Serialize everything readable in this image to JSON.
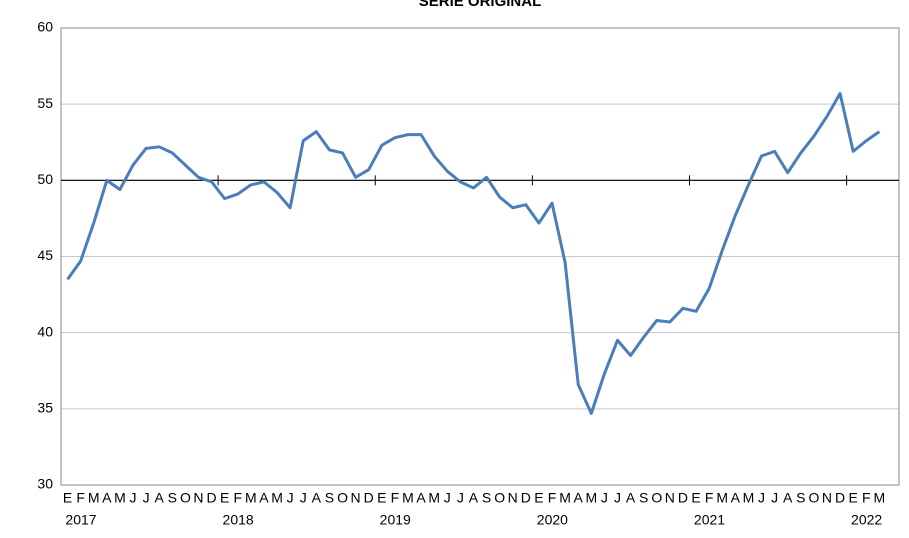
{
  "chart_data": {
    "type": "line",
    "title": "SERIE ORIGINAL",
    "categories": [
      "E",
      "F",
      "M",
      "A",
      "M",
      "J",
      "J",
      "A",
      "S",
      "O",
      "N",
      "D",
      "E",
      "F",
      "M",
      "A",
      "M",
      "J",
      "J",
      "A",
      "S",
      "O",
      "N",
      "D",
      "E",
      "F",
      "M",
      "A",
      "M",
      "J",
      "J",
      "A",
      "S",
      "O",
      "N",
      "D",
      "E",
      "F",
      "M",
      "A",
      "M",
      "J",
      "J",
      "A",
      "S",
      "O",
      "N",
      "D",
      "E",
      "F",
      "M",
      "A",
      "M",
      "J",
      "J",
      "A",
      "S",
      "O",
      "N",
      "D",
      "E",
      "F",
      "M"
    ],
    "x_group_labels": [
      "2017",
      "2018",
      "2019",
      "2020",
      "2021",
      "2022"
    ],
    "series": [
      {
        "name": "Serie original",
        "color": "#4a7ebb",
        "values": [
          43.5,
          44.7,
          47.2,
          50.0,
          49.4,
          51.0,
          52.1,
          52.2,
          51.8,
          51.0,
          50.2,
          49.9,
          48.8,
          49.1,
          49.7,
          49.9,
          49.2,
          48.2,
          52.6,
          53.2,
          52.0,
          51.8,
          50.2,
          50.7,
          52.3,
          52.8,
          53.0,
          53.0,
          51.6,
          50.6,
          49.9,
          49.5,
          50.2,
          48.9,
          48.2,
          48.4,
          47.2,
          48.5,
          44.6,
          36.6,
          34.7,
          37.3,
          39.5,
          38.5,
          39.7,
          40.8,
          40.7,
          41.6,
          41.4,
          42.9,
          45.4,
          47.7,
          49.7,
          51.6,
          51.9,
          50.5,
          51.8,
          52.9,
          54.2,
          55.7,
          51.9,
          52.6,
          53.2
        ]
      }
    ],
    "ylim": [
      30,
      60
    ],
    "yticks": [
      30,
      35,
      40,
      45,
      50,
      55,
      60
    ],
    "grid": true,
    "xaxis_at": 50
  }
}
